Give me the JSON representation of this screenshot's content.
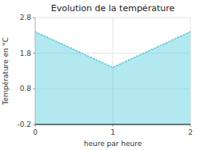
{
  "chart_data": {
    "type": "area",
    "title": "Evolution de la température",
    "x_label": "heure par heure",
    "y_label": "Température en °C",
    "x": [
      0,
      1,
      2
    ],
    "values": [
      2.4,
      1.4,
      2.4
    ],
    "xlim": [
      0,
      2
    ],
    "ylim": [
      -0.2,
      2.8
    ],
    "xticks": [
      0,
      1,
      2
    ],
    "yticks": [
      -0.2,
      0.8,
      1.8,
      2.8
    ],
    "color": "#55ccdd",
    "line_style": "dotted",
    "grid": true
  }
}
